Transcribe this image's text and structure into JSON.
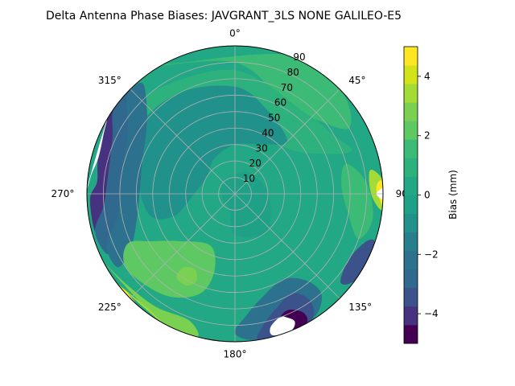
{
  "chart_data": {
    "type": "heatmap",
    "projection": "polar",
    "title": "Delta Antenna Phase Biases: JAVGRANT_3LS    NONE GALILEO-E5",
    "angular_ticks": [
      {
        "deg": 0,
        "label": "0°"
      },
      {
        "deg": 45,
        "label": "45°"
      },
      {
        "deg": 90,
        "label": "90°"
      },
      {
        "deg": 135,
        "label": "135°"
      },
      {
        "deg": 180,
        "label": "180°"
      },
      {
        "deg": 225,
        "label": "225°"
      },
      {
        "deg": 270,
        "label": "270°"
      },
      {
        "deg": 315,
        "label": "315°"
      }
    ],
    "radial_ticks": [
      10,
      20,
      30,
      40,
      50,
      60,
      70,
      80,
      90
    ],
    "radial_range": [
      0,
      90
    ],
    "grid": true,
    "colorbar": {
      "label": "Bias (mm)",
      "range": [
        -5,
        5
      ],
      "ticks": [
        -4,
        -2,
        0,
        2,
        4
      ],
      "levels": [
        -5,
        -4.375,
        -3.75,
        -3.125,
        -2.5,
        -1.875,
        -1.25,
        -0.625,
        0,
        0.625,
        1.25,
        1.875,
        2.5,
        3.125,
        3.75,
        4.375,
        5
      ],
      "colors": [
        "#440154",
        "#46327e",
        "#3b528b",
        "#31688e",
        "#2c728e",
        "#277f8e",
        "#21918c",
        "#1fa188",
        "#22a884",
        "#2db27d",
        "#3bbb75",
        "#5ec962",
        "#7ad151",
        "#a5db36",
        "#d2e21b",
        "#fde725"
      ]
    },
    "regions": [
      {
        "name": "background",
        "value": 0.3,
        "points": [
          [
            0,
            0
          ]
        ]
      },
      {
        "name": "north-sector",
        "value": 1.5,
        "points": [
          [
            30,
            55
          ],
          [
            15,
            70
          ],
          [
            0,
            80
          ],
          [
            -20,
            85
          ],
          [
            -30,
            90
          ],
          [
            20,
            90
          ],
          [
            45,
            90
          ],
          [
            60,
            80
          ],
          [
            45,
            65
          ]
        ]
      },
      {
        "name": "north-band",
        "value": 0.9,
        "points": [
          [
            40,
            40
          ],
          [
            20,
            45
          ],
          [
            0,
            50
          ],
          [
            -20,
            55
          ],
          [
            -40,
            60
          ],
          [
            -60,
            75
          ],
          [
            -40,
            80
          ],
          [
            0,
            75
          ],
          [
            40,
            65
          ],
          [
            60,
            70
          ],
          [
            70,
            75
          ],
          [
            60,
            50
          ]
        ]
      },
      {
        "name": "center-west-band",
        "value": -0.9,
        "points": [
          [
            300,
            20
          ],
          [
            330,
            25
          ],
          [
            0,
            30
          ],
          [
            30,
            35
          ],
          [
            45,
            45
          ],
          [
            20,
            55
          ],
          [
            0,
            65
          ],
          [
            -30,
            70
          ],
          [
            -60,
            70
          ],
          [
            260,
            55
          ],
          [
            250,
            40
          ],
          [
            270,
            25
          ]
        ]
      },
      {
        "name": "center-ring",
        "value": -0.3,
        "points": [
          [
            200,
            10
          ],
          [
            260,
            8
          ],
          [
            320,
            10
          ],
          [
            30,
            15
          ],
          [
            90,
            20
          ],
          [
            140,
            30
          ],
          [
            180,
            25
          ]
        ]
      },
      {
        "name": "west-edge-dark",
        "value": -4.7,
        "points": [
          [
            304,
            90
          ],
          [
            300,
            86
          ],
          [
            290,
            83
          ],
          [
            280,
            80
          ],
          [
            272,
            80
          ],
          [
            268,
            84
          ],
          [
            300,
            90
          ]
        ]
      },
      {
        "name": "west-edge-2",
        "value": -3.8,
        "points": [
          [
            310,
            90
          ],
          [
            305,
            84
          ],
          [
            295,
            78
          ],
          [
            285,
            74
          ],
          [
            275,
            74
          ],
          [
            265,
            76
          ],
          [
            258,
            82
          ],
          [
            255,
            88
          ],
          [
            268,
            88
          ],
          [
            275,
            84
          ],
          [
            285,
            86
          ],
          [
            300,
            90
          ]
        ]
      },
      {
        "name": "west-edge-3",
        "value": -2.8,
        "points": [
          [
            315,
            90
          ],
          [
            310,
            80
          ],
          [
            300,
            72
          ],
          [
            285,
            68
          ],
          [
            272,
            66
          ],
          [
            258,
            70
          ],
          [
            248,
            78
          ],
          [
            245,
            86
          ],
          [
            255,
            88
          ],
          [
            265,
            80
          ],
          [
            280,
            78
          ],
          [
            295,
            82
          ],
          [
            305,
            90
          ]
        ]
      },
      {
        "name": "west-edge-4",
        "value": -1.9,
        "points": [
          [
            320,
            88
          ],
          [
            315,
            76
          ],
          [
            305,
            66
          ],
          [
            290,
            60
          ],
          [
            272,
            58
          ],
          [
            255,
            62
          ],
          [
            242,
            72
          ],
          [
            238,
            84
          ],
          [
            248,
            84
          ],
          [
            260,
            72
          ],
          [
            280,
            70
          ],
          [
            300,
            75
          ],
          [
            312,
            88
          ]
        ]
      },
      {
        "name": "southwest-band",
        "value": 1.9,
        "points": [
          [
            230,
            45
          ],
          [
            205,
            35
          ],
          [
            195,
            50
          ],
          [
            200,
            65
          ],
          [
            215,
            75
          ],
          [
            235,
            80
          ],
          [
            245,
            72
          ],
          [
            240,
            58
          ]
        ]
      },
      {
        "name": "southwest-blob",
        "value": 2.5,
        "points": [
          [
            215,
            55
          ],
          [
            208,
            52
          ],
          [
            204,
            58
          ],
          [
            208,
            63
          ],
          [
            215,
            62
          ]
        ]
      },
      {
        "name": "southwest-edge-1",
        "value": 2.6,
        "points": [
          [
            200,
            82
          ],
          [
            215,
            84
          ],
          [
            230,
            86
          ],
          [
            240,
            89
          ],
          [
            210,
            90
          ],
          [
            195,
            90
          ]
        ]
      },
      {
        "name": "southwest-edge-2",
        "value": 3.6,
        "points": [
          [
            215,
            88
          ],
          [
            225,
            88
          ],
          [
            232,
            90
          ],
          [
            210,
            90
          ]
        ]
      },
      {
        "name": "southwest-edge-3",
        "value": 4.6,
        "points": [
          [
            222,
            90
          ],
          [
            228,
            89
          ],
          [
            230,
            90
          ]
        ]
      },
      {
        "name": "south-dark-1",
        "value": -2.5,
        "points": [
          [
            150,
            60
          ],
          [
            165,
            65
          ],
          [
            175,
            75
          ],
          [
            180,
            85
          ],
          [
            170,
            90
          ],
          [
            150,
            90
          ],
          [
            140,
            82
          ],
          [
            140,
            70
          ]
        ]
      },
      {
        "name": "south-dark-2",
        "value": -3.7,
        "points": [
          [
            150,
            70
          ],
          [
            160,
            74
          ],
          [
            168,
            82
          ],
          [
            170,
            90
          ],
          [
            150,
            90
          ],
          [
            145,
            80
          ]
        ]
      },
      {
        "name": "south-dark-3",
        "value": -4.6,
        "points": [
          [
            155,
            78
          ],
          [
            160,
            80
          ],
          [
            165,
            88
          ],
          [
            152,
            90
          ],
          [
            150,
            84
          ]
        ]
      },
      {
        "name": "south-white-gap",
        "value": null,
        "points": [
          [
            157,
            82
          ],
          [
            160,
            80
          ],
          [
            165,
            84
          ],
          [
            165,
            89
          ],
          [
            158,
            90
          ],
          [
            155,
            86
          ]
        ]
      },
      {
        "name": "east-band-1",
        "value": 1.6,
        "points": [
          [
            75,
            70
          ],
          [
            85,
            65
          ],
          [
            100,
            70
          ],
          [
            110,
            80
          ],
          [
            100,
            85
          ],
          [
            85,
            80
          ]
        ]
      },
      {
        "name": "east-band-2",
        "value": 3.2,
        "points": [
          [
            80,
            84
          ],
          [
            85,
            82
          ],
          [
            92,
            84
          ],
          [
            96,
            90
          ],
          [
            85,
            90
          ]
        ]
      },
      {
        "name": "east-band-3",
        "value": 4.6,
        "points": [
          [
            85,
            88
          ],
          [
            88,
            86
          ],
          [
            92,
            88
          ],
          [
            94,
            90
          ],
          [
            86,
            90
          ]
        ]
      },
      {
        "name": "east-dark-edge",
        "value": -3.3,
        "points": [
          [
            110,
            85
          ],
          [
            120,
            80
          ],
          [
            130,
            84
          ],
          [
            125,
            90
          ],
          [
            110,
            90
          ]
        ]
      },
      {
        "name": "east-white-gap",
        "value": null,
        "points": [
          [
            88,
            90
          ],
          [
            90,
            86
          ],
          [
            92,
            90
          ]
        ]
      },
      {
        "name": "west-white-gap",
        "value": null,
        "points": [
          [
            300,
            90
          ],
          [
            295,
            88
          ],
          [
            285,
            86
          ],
          [
            278,
            88
          ],
          [
            272,
            90
          ]
        ]
      }
    ]
  }
}
